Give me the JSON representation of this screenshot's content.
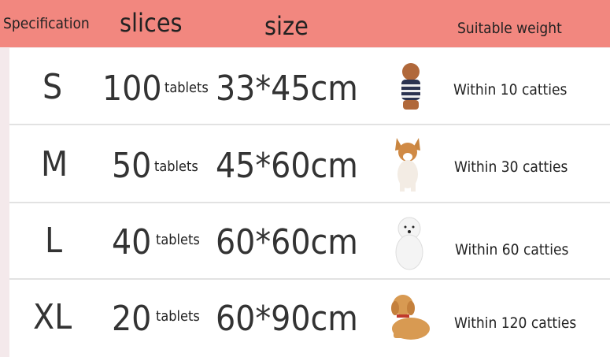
{
  "header": {
    "specification": "Specification",
    "slices": "slices",
    "size": "size",
    "weight": "Suitable weight"
  },
  "colors": {
    "header": "#f2877f",
    "row_bg": "#ffffff",
    "page_bg": "#f4e9eb"
  },
  "rows": [
    {
      "spec": "S",
      "count": "100",
      "unit": "tablets",
      "size": "33*45cm",
      "dog": "poodle-image",
      "weight": "Within 10 catties"
    },
    {
      "spec": "M",
      "count": "50",
      "unit": "tablets",
      "size": "45*60cm",
      "dog": "corgi-image",
      "weight": "Within 30 catties"
    },
    {
      "spec": "L",
      "count": "40",
      "unit": "tablets",
      "size": "60*60cm",
      "dog": "pomeranian-image",
      "weight": "Within 60 catties"
    },
    {
      "spec": "XL",
      "count": "20",
      "unit": "tablets",
      "size": "60*90cm",
      "dog": "golden-retriever-image",
      "weight": "Within 120 catties"
    }
  ]
}
